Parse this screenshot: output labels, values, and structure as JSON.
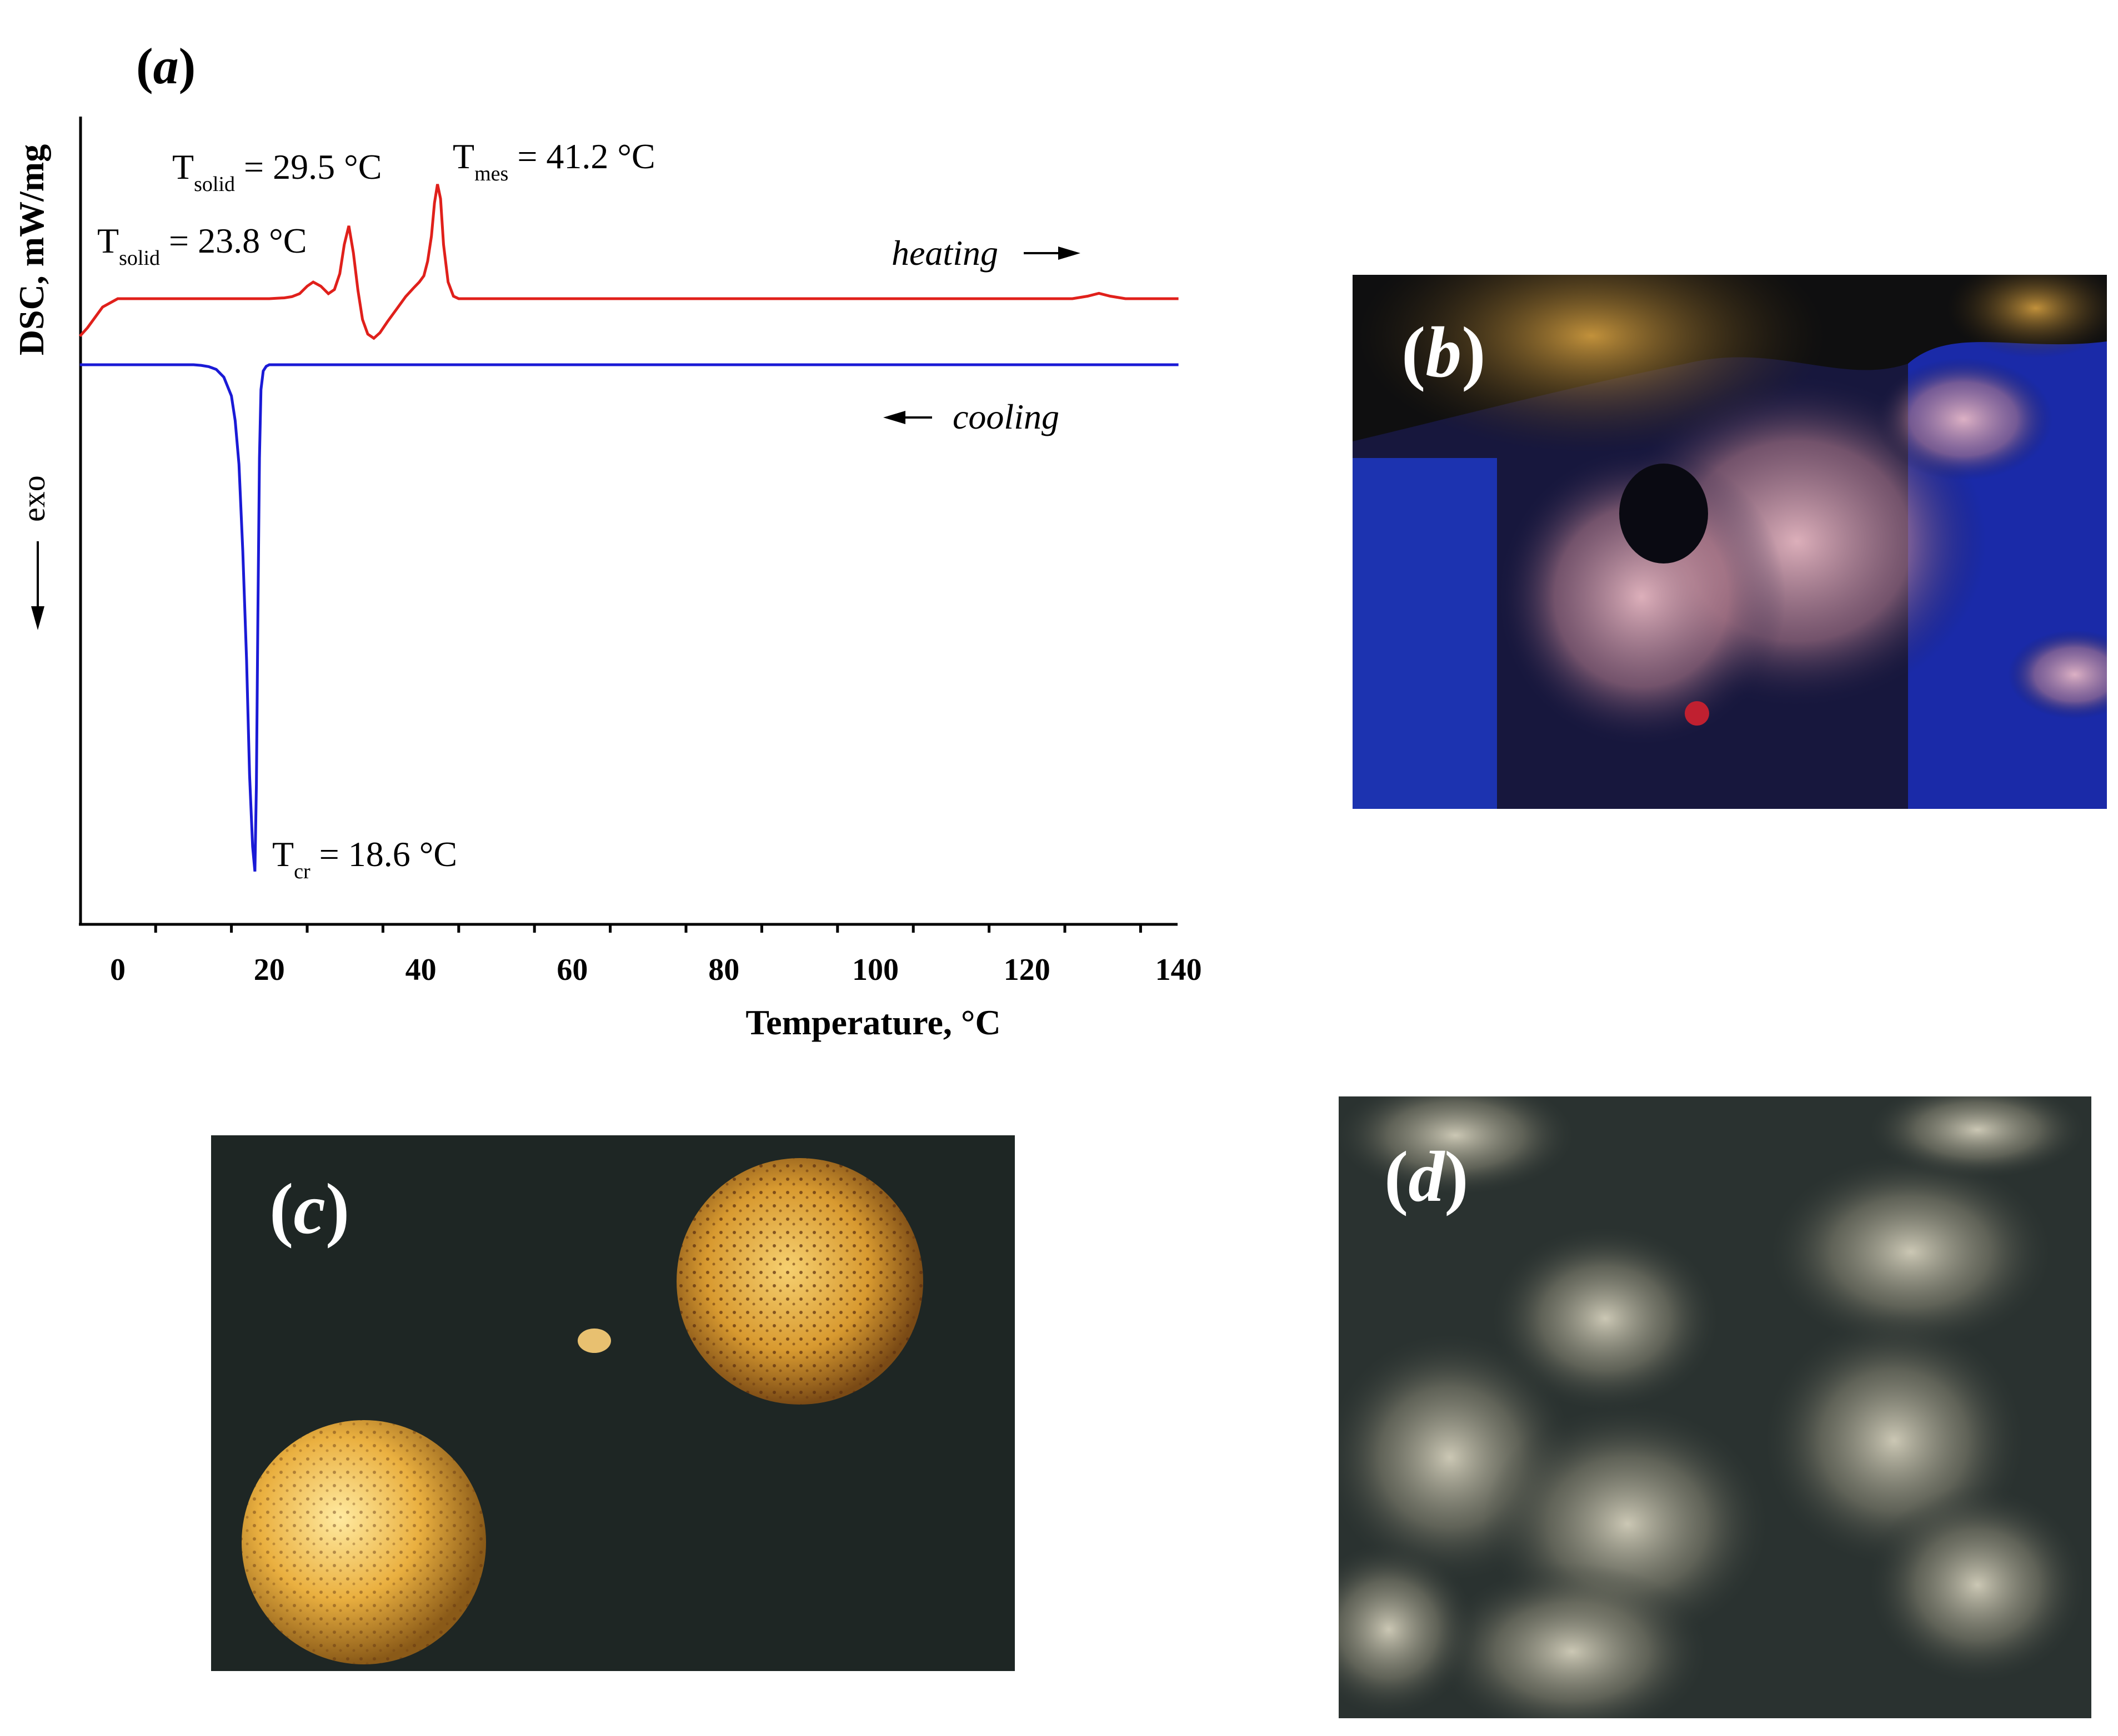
{
  "panel_a_label": "a",
  "panel_b_label": "b",
  "panel_c_label": "c",
  "panel_d_label": "d",
  "chart_data": {
    "type": "line",
    "title": "",
    "xlabel": "Temperature, °C",
    "ylabel": "DSC, mW/mg",
    "exo_label": "exo",
    "xlim": [
      -5,
      140
    ],
    "xticks": [
      0,
      20,
      40,
      60,
      80,
      100,
      120,
      140
    ],
    "grid": false,
    "colors": {
      "heating": "#e0201b",
      "cooling": "#1a1ad6"
    },
    "series": [
      {
        "name": "heating",
        "label": "heating",
        "x": [
          -5,
          -4,
          -2,
          0,
          10,
          20,
          22,
          23,
          24,
          25,
          25.8,
          26.8,
          27.8,
          28.6,
          29.3,
          29.9,
          30.5,
          31.1,
          31.7,
          32.3,
          33.0,
          33.8,
          34.6,
          35.6,
          36.8,
          38.0,
          39.0,
          39.8,
          40.4,
          40.9,
          41.4,
          41.8,
          42.2,
          42.6,
          43.0,
          43.6,
          44.3,
          45.0,
          46,
          50,
          60,
          70,
          80,
          90,
          100,
          110,
          120,
          126,
          128,
          129.5,
          131,
          133,
          140
        ],
        "y": [
          -0.9,
          -0.7,
          -0.2,
          0,
          0,
          0,
          0.02,
          0.05,
          0.12,
          0.3,
          0.4,
          0.3,
          0.12,
          0.22,
          0.6,
          1.3,
          1.75,
          1.1,
          0.2,
          -0.5,
          -0.85,
          -0.95,
          -0.82,
          -0.55,
          -0.25,
          0.05,
          0.25,
          0.4,
          0.55,
          0.9,
          1.5,
          2.3,
          2.75,
          2.4,
          1.3,
          0.4,
          0.06,
          0,
          0,
          0,
          0,
          0,
          0,
          0,
          0,
          0,
          0,
          0,
          0.06,
          0.13,
          0.06,
          0,
          0
        ]
      },
      {
        "name": "cooling",
        "label": "cooling",
        "x": [
          -5,
          0,
          5,
          10,
          11,
          12,
          13,
          14,
          15,
          15.5,
          16,
          16.5,
          17,
          17.4,
          17.8,
          18.1,
          18.3,
          18.5,
          18.7,
          18.9,
          19.2,
          19.6,
          20,
          30,
          40,
          50,
          60,
          70,
          80,
          90,
          100,
          110,
          120,
          130,
          140
        ],
        "y": [
          0,
          0,
          0,
          0,
          -0.02,
          -0.06,
          -0.15,
          -0.4,
          -1.0,
          -1.8,
          -3.2,
          -6.0,
          -9.5,
          -13.2,
          -15.5,
          -16.3,
          -13.5,
          -8.0,
          -3.0,
          -0.8,
          -0.2,
          -0.05,
          0,
          0,
          0,
          0,
          0,
          0,
          0,
          0,
          0,
          0,
          0,
          0,
          0
        ]
      }
    ],
    "annotations": {
      "t_solid_1": {
        "symbol": "T",
        "sub": "solid",
        "value": "= 23.8 °C"
      },
      "t_solid_2": {
        "symbol": "T",
        "sub": "solid",
        "value": "= 29.5 °C"
      },
      "t_mes": {
        "symbol": "T",
        "sub": "mes",
        "value": "= 41.2 °C"
      },
      "t_cr": {
        "symbol": "T",
        "sub": "cr",
        "value": "= 18.6 °C"
      }
    }
  }
}
